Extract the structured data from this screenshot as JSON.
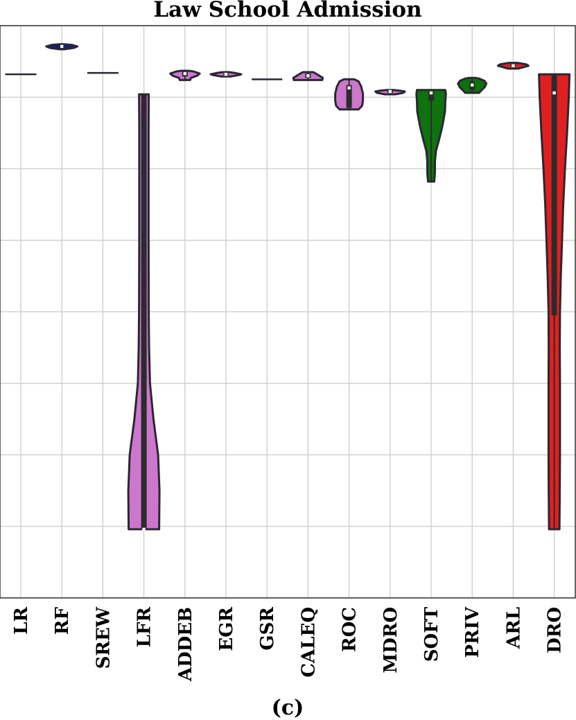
{
  "chart_data": {
    "type": "violin",
    "title": "Law School Admission",
    "caption": "(c)",
    "xlabel": "",
    "ylabel": "",
    "ylim": [
      0,
      8
    ],
    "grid": true,
    "y_tick_labels_shown": false,
    "categories": [
      "LR",
      "RF",
      "SREW",
      "LFR",
      "ADDEB",
      "EGR",
      "GSR",
      "CALEQ",
      "ROC",
      "MDRO",
      "SOFT",
      "PRIV",
      "ARL",
      "DRO"
    ],
    "colors": {
      "LR": "#2a2633",
      "RF": "#1a1a80",
      "SREW": "#2a2633",
      "LFR": "#cc77cc",
      "ADDEB": "#cc77cc",
      "EGR": "#cc77cc",
      "GSR": "#2a2633",
      "CALEQ": "#cc77cc",
      "ROC": "#cc77cc",
      "MDRO": "#cc77cc",
      "SOFT": "#0e720e",
      "PRIV": "#0e720e",
      "ARL": "#e02020",
      "DRO": "#e02020"
    },
    "series": [
      {
        "category": "LR",
        "min": 7.32,
        "max": 7.32,
        "q1": 7.32,
        "median": 7.32,
        "q3": 7.32,
        "width_profile": [
          [
            7.32,
            0.9
          ]
        ]
      },
      {
        "category": "RF",
        "min": 7.67,
        "max": 7.74,
        "q1": 7.7,
        "median": 7.71,
        "q3": 7.72,
        "width_profile": [
          [
            7.67,
            0.15
          ],
          [
            7.69,
            0.7
          ],
          [
            7.71,
            0.9
          ],
          [
            7.73,
            0.6
          ],
          [
            7.74,
            0.1
          ]
        ]
      },
      {
        "category": "SREW",
        "min": 7.34,
        "max": 7.34,
        "q1": 7.34,
        "median": 7.34,
        "q3": 7.34,
        "width_profile": [
          [
            7.34,
            0.9
          ]
        ]
      },
      {
        "category": "LFR",
        "min": 0.96,
        "max": 7.04,
        "q1": 0.96,
        "median": 0.96,
        "q3": 7.04,
        "width_profile": [
          [
            0.96,
            0.88
          ],
          [
            1.5,
            0.9
          ],
          [
            2.0,
            0.82
          ],
          [
            2.5,
            0.55
          ],
          [
            3.0,
            0.35
          ],
          [
            3.5,
            0.3
          ],
          [
            4.0,
            0.28
          ],
          [
            5.0,
            0.27
          ],
          [
            6.0,
            0.27
          ],
          [
            6.6,
            0.27
          ],
          [
            7.04,
            0.28
          ]
        ]
      },
      {
        "category": "ADDEB",
        "min": 7.24,
        "max": 7.37,
        "q1": 7.29,
        "median": 7.33,
        "q3": 7.36,
        "width_profile": [
          [
            7.24,
            0.3
          ],
          [
            7.27,
            0.35
          ],
          [
            7.3,
            0.7
          ],
          [
            7.33,
            0.85
          ],
          [
            7.36,
            0.5
          ],
          [
            7.37,
            0.2
          ]
        ]
      },
      {
        "category": "EGR",
        "min": 7.29,
        "max": 7.35,
        "q1": 7.31,
        "median": 7.32,
        "q3": 7.33,
        "width_profile": [
          [
            7.29,
            0.3
          ],
          [
            7.31,
            0.75
          ],
          [
            7.32,
            0.88
          ],
          [
            7.34,
            0.5
          ],
          [
            7.35,
            0.2
          ]
        ]
      },
      {
        "category": "GSR",
        "min": 7.25,
        "max": 7.25,
        "q1": 7.25,
        "median": 7.25,
        "q3": 7.25,
        "width_profile": [
          [
            7.25,
            0.88
          ]
        ]
      },
      {
        "category": "CALEQ",
        "min": 7.24,
        "max": 7.35,
        "q1": 7.27,
        "median": 7.3,
        "q3": 7.33,
        "width_profile": [
          [
            7.24,
            0.82
          ],
          [
            7.27,
            0.85
          ],
          [
            7.3,
            0.65
          ],
          [
            7.33,
            0.45
          ],
          [
            7.35,
            0.3
          ]
        ]
      },
      {
        "category": "ROC",
        "min": 6.83,
        "max": 7.25,
        "q1": 6.85,
        "median": 7.13,
        "q3": 7.17,
        "width_profile": [
          [
            6.83,
            0.55
          ],
          [
            6.88,
            0.75
          ],
          [
            6.95,
            0.8
          ],
          [
            7.05,
            0.8
          ],
          [
            7.15,
            0.7
          ],
          [
            7.22,
            0.55
          ],
          [
            7.25,
            0.3
          ]
        ]
      },
      {
        "category": "MDRO",
        "min": 7.04,
        "max": 7.1,
        "q1": 7.06,
        "median": 7.08,
        "q3": 7.09,
        "width_profile": [
          [
            7.04,
            0.3
          ],
          [
            7.06,
            0.75
          ],
          [
            7.08,
            0.85
          ],
          [
            7.09,
            0.6
          ],
          [
            7.1,
            0.2
          ]
        ]
      },
      {
        "category": "SOFT",
        "min": 5.82,
        "max": 7.1,
        "q1": 6.95,
        "median": 7.06,
        "q3": 7.08,
        "width_profile": [
          [
            5.82,
            0.18
          ],
          [
            5.95,
            0.22
          ],
          [
            6.1,
            0.22
          ],
          [
            6.25,
            0.28
          ],
          [
            6.4,
            0.45
          ],
          [
            6.6,
            0.65
          ],
          [
            6.8,
            0.8
          ],
          [
            6.95,
            0.82
          ],
          [
            7.05,
            0.85
          ],
          [
            7.1,
            0.82
          ]
        ]
      },
      {
        "category": "PRIV",
        "min": 7.06,
        "max": 7.27,
        "q1": 7.1,
        "median": 7.17,
        "q3": 7.22,
        "width_profile": [
          [
            7.06,
            0.4
          ],
          [
            7.1,
            0.55
          ],
          [
            7.14,
            0.72
          ],
          [
            7.19,
            0.82
          ],
          [
            7.23,
            0.7
          ],
          [
            7.26,
            0.4
          ],
          [
            7.27,
            0.2
          ]
        ]
      },
      {
        "category": "ARL",
        "min": 7.4,
        "max": 7.48,
        "q1": 7.43,
        "median": 7.44,
        "q3": 7.46,
        "width_profile": [
          [
            7.4,
            0.3
          ],
          [
            7.42,
            0.6
          ],
          [
            7.44,
            0.88
          ],
          [
            7.46,
            0.75
          ],
          [
            7.48,
            0.25
          ]
        ]
      },
      {
        "category": "DRO",
        "min": 0.96,
        "max": 7.32,
        "q1": 3.95,
        "median": 7.06,
        "q3": 7.32,
        "width_profile": [
          [
            0.96,
            0.3
          ],
          [
            1.5,
            0.32
          ],
          [
            2.0,
            0.33
          ],
          [
            2.5,
            0.33
          ],
          [
            3.0,
            0.33
          ],
          [
            3.5,
            0.32
          ],
          [
            4.0,
            0.33
          ],
          [
            4.5,
            0.38
          ],
          [
            5.0,
            0.45
          ],
          [
            5.5,
            0.52
          ],
          [
            6.0,
            0.62
          ],
          [
            6.5,
            0.74
          ],
          [
            7.0,
            0.84
          ],
          [
            7.32,
            0.88
          ]
        ]
      }
    ]
  }
}
